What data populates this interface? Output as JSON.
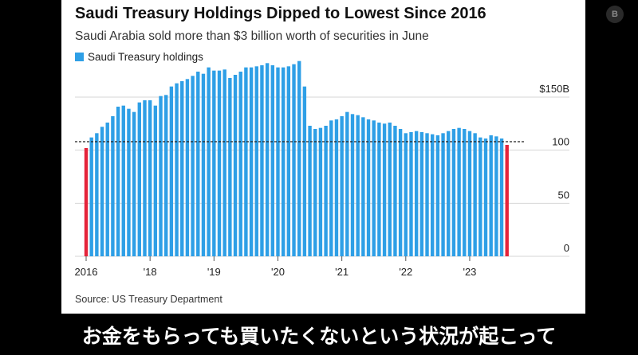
{
  "caption": "お金をもらっても買いたくないという状況が起こって",
  "channel_badge": "B",
  "colors": {
    "bar": "#2e9fe6",
    "highlight": "#e5243b",
    "reference_line": "#222222",
    "grid": "#d4d4d4"
  },
  "chart_data": {
    "type": "bar",
    "title": "Saudi Treasury Holdings Dipped to Lowest Since 2016",
    "subtitle": "Saudi Arabia sold more than $3 billion worth of securities in June",
    "source": "Source: US Treasury Department",
    "legend": [
      "Saudi Treasury holdings"
    ],
    "legend_position": "top-left",
    "ylim": [
      0,
      180
    ],
    "yticks": [
      {
        "value": 150,
        "label": "$150B"
      },
      {
        "value": 100,
        "label": "100"
      },
      {
        "value": 50,
        "label": "50"
      },
      {
        "value": 0,
        "label": "0"
      }
    ],
    "xticks": [
      {
        "index": 0,
        "label": "2016"
      },
      {
        "index": 12,
        "label": "'18"
      },
      {
        "index": 24,
        "label": "'19"
      },
      {
        "index": 36,
        "label": "'20"
      },
      {
        "index": 48,
        "label": "'21"
      },
      {
        "index": 60,
        "label": "'22"
      },
      {
        "index": 72,
        "label": "'23"
      }
    ],
    "grid": true,
    "reference_line": 108,
    "highlight_indices": [
      0,
      79
    ],
    "series": [
      {
        "name": "Saudi Treasury holdings",
        "values": [
          102,
          112,
          116,
          122,
          126,
          132,
          141,
          142,
          139,
          136,
          145,
          147,
          147,
          142,
          151,
          152,
          160,
          163,
          165,
          167,
          170,
          174,
          172,
          178,
          175,
          175,
          176,
          168,
          171,
          174,
          178,
          178,
          179,
          180,
          182,
          180,
          178,
          178,
          179,
          181,
          184,
          160,
          123,
          120,
          121,
          123,
          128,
          129,
          132,
          136,
          134,
          133,
          131,
          129,
          128,
          126,
          125,
          126,
          123,
          120,
          116,
          117,
          118,
          117,
          116,
          115,
          114,
          116,
          118,
          120,
          121,
          120,
          118,
          116,
          112,
          111,
          114,
          113,
          111,
          105
        ]
      }
    ]
  }
}
